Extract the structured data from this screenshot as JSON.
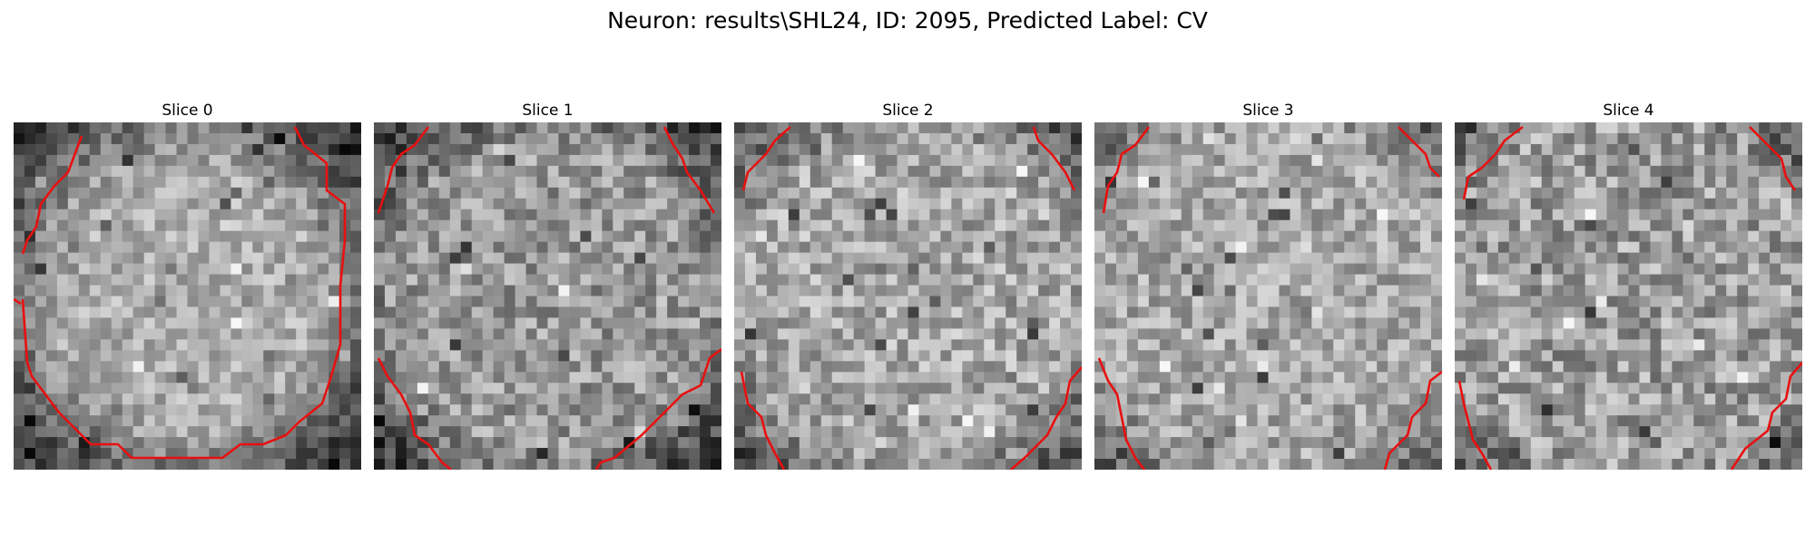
{
  "figure": {
    "title": "Neuron: results\\SHL24, ID: 2095, Predicted Label: CV"
  },
  "panels": [
    {
      "title": "Slice 0"
    },
    {
      "title": "Slice 1"
    },
    {
      "title": "Slice 2"
    },
    {
      "title": "Slice 3"
    },
    {
      "title": "Slice 4"
    }
  ],
  "style": {
    "contour_color": "#e81010",
    "colormap": "grayscale"
  }
}
